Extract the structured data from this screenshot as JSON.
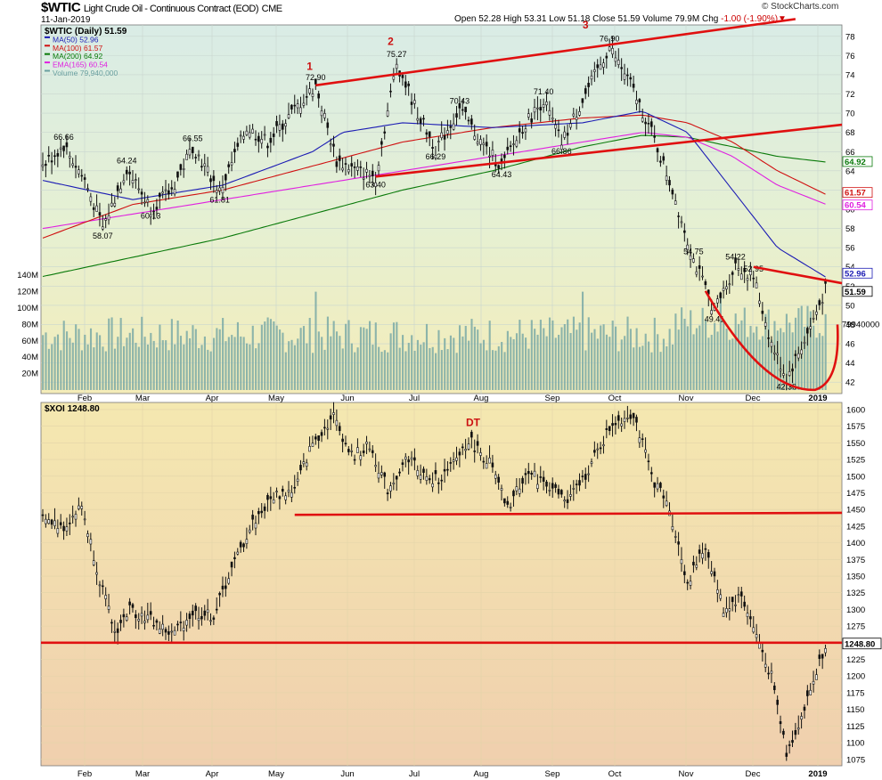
{
  "header": {
    "symbol": "$WTIC",
    "name": "Light Crude Oil - Continuous Contract (EOD)",
    "exchange": "CME",
    "date": "11-Jan-2019",
    "ohlc": "Open 52.28  High 53.31  Low 51.18  Close 51.59  Volume 79.9M  Chg",
    "chg": "-1.00 (-1.90%)",
    "brand": "© StockCharts.com"
  },
  "chart_data": [
    {
      "type": "line",
      "title": "$WTIC (Daily) 51.59",
      "ylim": [
        41,
        79
      ],
      "y_ticks": [
        42,
        44,
        46,
        48,
        50,
        52,
        54,
        56,
        58,
        60,
        62,
        64,
        66,
        68,
        70,
        72,
        74,
        76,
        78
      ],
      "x_months": [
        "Feb",
        "Mar",
        "Apr",
        "May",
        "Jun",
        "Jul",
        "Aug",
        "Sep",
        "Oct",
        "Nov",
        "Dec",
        "2019"
      ],
      "legend": [
        {
          "label": "$WTIC (Daily) 51.59",
          "color": "#000000"
        },
        {
          "label": "MA(50) 52.96",
          "color": "#1c1cb4"
        },
        {
          "label": "MA(100) 61.57",
          "color": "#d01010"
        },
        {
          "label": "MA(200) 64.92",
          "color": "#0a7a0a"
        },
        {
          "label": "EMA(165) 60.54",
          "color": "#e020e0"
        },
        {
          "label": "Volume 79,940,000",
          "color": "#6aa0a0"
        }
      ],
      "price_points": [
        {
          "t": 0,
          "v": 64.5
        },
        {
          "t": 14,
          "v": 66.66
        },
        {
          "t": 28,
          "v": 63.0
        },
        {
          "t": 40,
          "v": 58.07
        },
        {
          "t": 56,
          "v": 64.24
        },
        {
          "t": 72,
          "v": 60.13
        },
        {
          "t": 86,
          "v": 62.0
        },
        {
          "t": 100,
          "v": 66.55
        },
        {
          "t": 118,
          "v": 61.81
        },
        {
          "t": 136,
          "v": 68.5
        },
        {
          "t": 150,
          "v": 67.0
        },
        {
          "t": 166,
          "v": 70.0
        },
        {
          "t": 182,
          "v": 72.9
        },
        {
          "t": 196,
          "v": 65.0
        },
        {
          "t": 210,
          "v": 64.0
        },
        {
          "t": 222,
          "v": 63.4
        },
        {
          "t": 236,
          "v": 75.27
        },
        {
          "t": 250,
          "v": 70.0
        },
        {
          "t": 262,
          "v": 66.29
        },
        {
          "t": 278,
          "v": 70.43
        },
        {
          "t": 292,
          "v": 67.0
        },
        {
          "t": 306,
          "v": 64.43
        },
        {
          "t": 320,
          "v": 68.5
        },
        {
          "t": 334,
          "v": 71.4
        },
        {
          "t": 346,
          "v": 66.86
        },
        {
          "t": 362,
          "v": 72.0
        },
        {
          "t": 378,
          "v": 76.9
        },
        {
          "t": 392,
          "v": 73.0
        },
        {
          "t": 406,
          "v": 68.0
        },
        {
          "t": 420,
          "v": 62.0
        },
        {
          "t": 434,
          "v": 54.75
        },
        {
          "t": 448,
          "v": 49.41
        },
        {
          "t": 462,
          "v": 54.22
        },
        {
          "t": 474,
          "v": 52.95
        },
        {
          "t": 486,
          "v": 46.0
        },
        {
          "t": 496,
          "v": 42.36
        },
        {
          "t": 510,
          "v": 47.0
        },
        {
          "t": 522,
          "v": 51.59
        }
      ],
      "peak_labels": [
        {
          "t": 14,
          "v": 66.66,
          "text": "66.66"
        },
        {
          "t": 40,
          "v": 58.07,
          "text": "58.07"
        },
        {
          "t": 56,
          "v": 64.24,
          "text": "64.24"
        },
        {
          "t": 72,
          "v": 60.13,
          "text": "60.13"
        },
        {
          "t": 100,
          "v": 66.55,
          "text": "66.55"
        },
        {
          "t": 118,
          "v": 61.81,
          "text": "61.81"
        },
        {
          "t": 182,
          "v": 72.9,
          "text": "72.90"
        },
        {
          "t": 222,
          "v": 63.4,
          "text": "63.40"
        },
        {
          "t": 236,
          "v": 75.27,
          "text": "75.27"
        },
        {
          "t": 262,
          "v": 66.29,
          "text": "66.29"
        },
        {
          "t": 278,
          "v": 70.43,
          "text": "70.43"
        },
        {
          "t": 306,
          "v": 64.43,
          "text": "64.43"
        },
        {
          "t": 334,
          "v": 71.4,
          "text": "71.40"
        },
        {
          "t": 346,
          "v": 66.86,
          "text": "66.86"
        },
        {
          "t": 378,
          "v": 76.9,
          "text": "76.90"
        },
        {
          "t": 434,
          "v": 54.75,
          "text": "54.75"
        },
        {
          "t": 448,
          "v": 49.41,
          "text": "49.41"
        },
        {
          "t": 462,
          "v": 54.22,
          "text": "54.22"
        },
        {
          "t": 474,
          "v": 52.95,
          "text": "52.95"
        },
        {
          "t": 496,
          "v": 42.36,
          "text": "42.36"
        }
      ],
      "wave_labels": [
        {
          "t": 178,
          "v": 74.5,
          "text": "1"
        },
        {
          "t": 232,
          "v": 77.1,
          "text": "2"
        },
        {
          "t": 362,
          "v": 78.8,
          "text": "3"
        }
      ],
      "ma50": [
        [
          0,
          63.0
        ],
        [
          60,
          61.0
        ],
        [
          120,
          62.5
        ],
        [
          180,
          66.0
        ],
        [
          200,
          68.0
        ],
        [
          240,
          69.0
        ],
        [
          300,
          68.5
        ],
        [
          360,
          69.0
        ],
        [
          400,
          70.2
        ],
        [
          430,
          68.0
        ],
        [
          460,
          62.0
        ],
        [
          490,
          56.0
        ],
        [
          522,
          52.96
        ]
      ],
      "ma100": [
        [
          0,
          57.0
        ],
        [
          60,
          60.5
        ],
        [
          120,
          62.0
        ],
        [
          180,
          64.5
        ],
        [
          240,
          67.0
        ],
        [
          300,
          68.5
        ],
        [
          360,
          69.5
        ],
        [
          400,
          69.8
        ],
        [
          430,
          69.0
        ],
        [
          460,
          67.0
        ],
        [
          490,
          64.0
        ],
        [
          522,
          61.57
        ]
      ],
      "ma200": [
        [
          0,
          53.0
        ],
        [
          60,
          55.0
        ],
        [
          120,
          57.0
        ],
        [
          180,
          59.5
        ],
        [
          240,
          62.0
        ],
        [
          300,
          64.0
        ],
        [
          360,
          66.5
        ],
        [
          400,
          67.7
        ],
        [
          430,
          67.5
        ],
        [
          460,
          66.5
        ],
        [
          490,
          65.5
        ],
        [
          522,
          64.92
        ]
      ],
      "ema165": [
        [
          0,
          58.0
        ],
        [
          60,
          59.5
        ],
        [
          120,
          61.0
        ],
        [
          180,
          62.5
        ],
        [
          240,
          64.0
        ],
        [
          300,
          65.5
        ],
        [
          360,
          67.0
        ],
        [
          400,
          68.0
        ],
        [
          430,
          67.5
        ],
        [
          460,
          65.5
        ],
        [
          490,
          62.5
        ],
        [
          522,
          60.54
        ]
      ],
      "volume_axis": {
        "ticks": [
          "20M",
          "40M",
          "60M",
          "80M",
          "100M",
          "120M",
          "140M"
        ],
        "max": 150,
        "current_label": "79940000"
      },
      "right_value_labels": [
        {
          "text": "52.96",
          "color": "#1c1cb4",
          "v": 53.0
        },
        {
          "text": "51.59",
          "color": "#000000",
          "v": 51.59
        },
        {
          "text": "64.92",
          "color": "#0a7a0a",
          "v": 64.92
        },
        {
          "text": "61.57",
          "color": "#d01010",
          "v": 61.57
        },
        {
          "text": "60.54",
          "color": "#e020e0",
          "v": 60.54
        }
      ]
    },
    {
      "type": "line",
      "title": "$XOI 1248.80",
      "ylim": [
        1068,
        1608
      ],
      "y_ticks": [
        1075,
        1100,
        1125,
        1150,
        1175,
        1200,
        1225,
        1250,
        1275,
        1300,
        1325,
        1350,
        1375,
        1400,
        1425,
        1450,
        1475,
        1500,
        1525,
        1550,
        1575,
        1600
      ],
      "x_months": [
        "Feb",
        "Mar",
        "Apr",
        "May",
        "Jun",
        "Jul",
        "Aug",
        "Sep",
        "Oct",
        "Nov",
        "Dec",
        "2019"
      ],
      "price_points": [
        {
          "t": 0,
          "v": 1435
        },
        {
          "t": 14,
          "v": 1425
        },
        {
          "t": 26,
          "v": 1455
        },
        {
          "t": 38,
          "v": 1345
        },
        {
          "t": 48,
          "v": 1265
        },
        {
          "t": 58,
          "v": 1300
        },
        {
          "t": 72,
          "v": 1285
        },
        {
          "t": 86,
          "v": 1262
        },
        {
          "t": 100,
          "v": 1295
        },
        {
          "t": 114,
          "v": 1290
        },
        {
          "t": 124,
          "v": 1350
        },
        {
          "t": 140,
          "v": 1430
        },
        {
          "t": 154,
          "v": 1470
        },
        {
          "t": 168,
          "v": 1480
        },
        {
          "t": 180,
          "v": 1550
        },
        {
          "t": 194,
          "v": 1590
        },
        {
          "t": 206,
          "v": 1530
        },
        {
          "t": 218,
          "v": 1545
        },
        {
          "t": 230,
          "v": 1480
        },
        {
          "t": 244,
          "v": 1530
        },
        {
          "t": 258,
          "v": 1490
        },
        {
          "t": 270,
          "v": 1505
        },
        {
          "t": 284,
          "v": 1555
        },
        {
          "t": 298,
          "v": 1520
        },
        {
          "t": 310,
          "v": 1450
        },
        {
          "t": 322,
          "v": 1505
        },
        {
          "t": 336,
          "v": 1490
        },
        {
          "t": 350,
          "v": 1460
        },
        {
          "t": 364,
          "v": 1510
        },
        {
          "t": 380,
          "v": 1580
        },
        {
          "t": 394,
          "v": 1595
        },
        {
          "t": 406,
          "v": 1500
        },
        {
          "t": 418,
          "v": 1450
        },
        {
          "t": 430,
          "v": 1340
        },
        {
          "t": 442,
          "v": 1395
        },
        {
          "t": 454,
          "v": 1300
        },
        {
          "t": 466,
          "v": 1320
        },
        {
          "t": 476,
          "v": 1260
        },
        {
          "t": 486,
          "v": 1200
        },
        {
          "t": 496,
          "v": 1085
        },
        {
          "t": 508,
          "v": 1150
        },
        {
          "t": 522,
          "v": 1248.8
        }
      ],
      "annotations": [
        {
          "text": "DT",
          "t": 287,
          "v": 1575
        }
      ],
      "support_lines": [
        1445,
        1250
      ],
      "last_label": "1248.80"
    }
  ]
}
